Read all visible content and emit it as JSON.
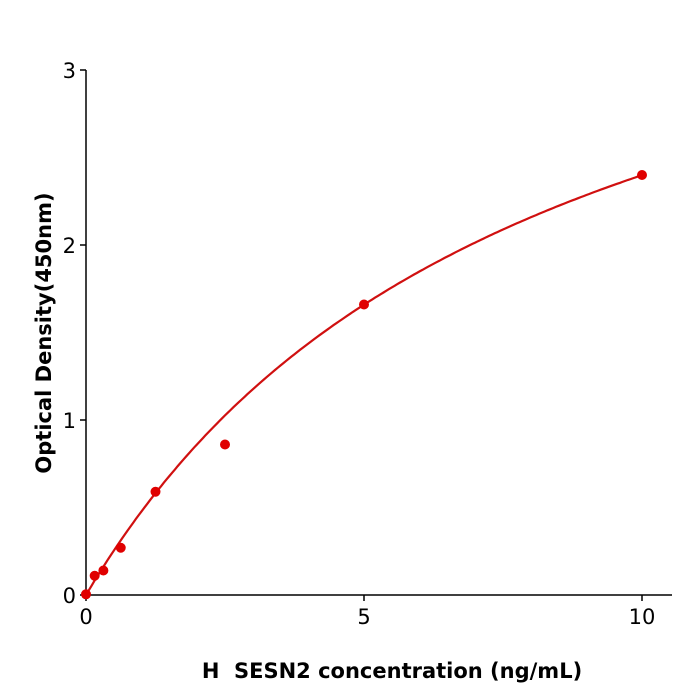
{
  "chart_data": {
    "type": "scatter",
    "xlabel": "H  SESN2 concentration (ng/mL)",
    "ylabel": "Optical Density(450nm)",
    "xlim": [
      0,
      10.5
    ],
    "ylim": [
      0,
      3
    ],
    "xticks": [
      "0",
      "5",
      "10"
    ],
    "yticks": [
      "0",
      "1",
      "2",
      "3"
    ],
    "grid": false,
    "points": {
      "x": [
        0,
        0.156,
        0.3125,
        0.625,
        1.25,
        2.5,
        5,
        10
      ],
      "y": [
        0.004,
        0.11,
        0.14,
        0.27,
        0.59,
        0.86,
        1.66,
        2.4
      ]
    },
    "fit_curve": true,
    "color": "#e00000",
    "line_color": "#d01010"
  }
}
